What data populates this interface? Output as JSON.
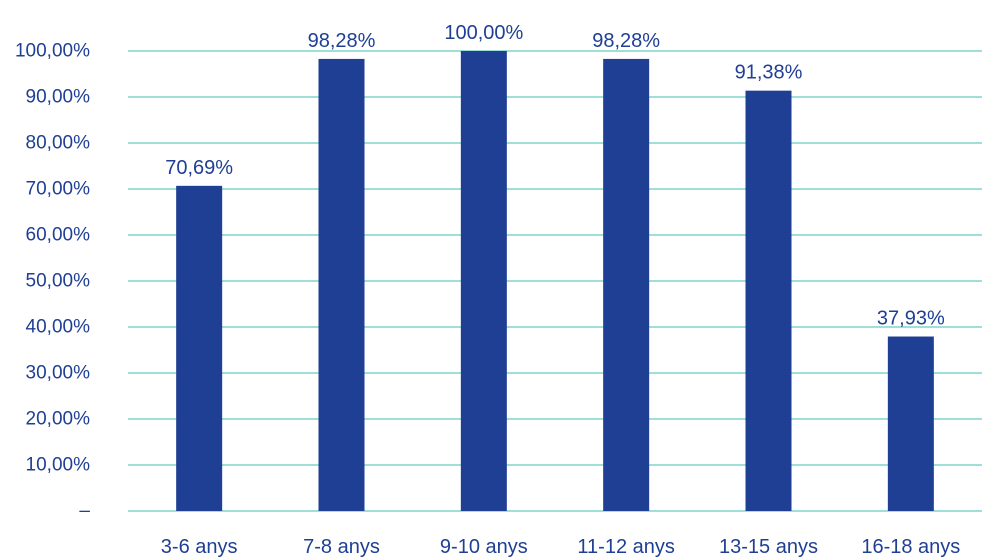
{
  "chart_data": {
    "type": "bar",
    "categories": [
      "3-6 anys",
      "7-8 anys",
      "9-10 anys",
      "11-12 anys",
      "13-15 anys",
      "16-18 anys"
    ],
    "values": [
      70.69,
      98.28,
      100.0,
      98.28,
      91.38,
      37.93
    ],
    "value_labels": [
      "70,69%",
      "98,28%",
      "100,00%",
      "98,28%",
      "91,38%",
      "37,93%"
    ],
    "ylim": [
      0,
      100
    ],
    "y_ticks": [
      {
        "value": 0,
        "label": "–"
      },
      {
        "value": 10,
        "label": "10,00%"
      },
      {
        "value": 20,
        "label": "20,00%"
      },
      {
        "value": 30,
        "label": "30,00%"
      },
      {
        "value": 40,
        "label": "40,00%"
      },
      {
        "value": 50,
        "label": "50,00%"
      },
      {
        "value": 60,
        "label": "60,00%"
      },
      {
        "value": 70,
        "label": "70,00%"
      },
      {
        "value": 80,
        "label": "80,00%"
      },
      {
        "value": 90,
        "label": "90,00%"
      },
      {
        "value": 100,
        "label": "100,00%"
      }
    ],
    "title": "",
    "xlabel": "",
    "ylabel": "",
    "grid": true,
    "legend": "none",
    "colors": {
      "bar": "#1f3f94",
      "grid": "#7fd6cc",
      "text": "#1f3f94"
    }
  }
}
